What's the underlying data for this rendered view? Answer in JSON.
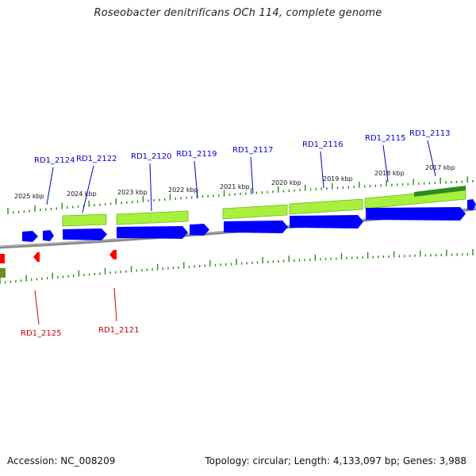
{
  "title": "Roseobacter denitrificans OCh 114, complete genome",
  "footer": {
    "accession": "Accession: NC_008209",
    "summary": "Topology: circular; Length: 4,133,097 bp; Genes: 3,988"
  },
  "colors": {
    "forward_cds": "#0000ff",
    "reverse_cds": "#ff0000",
    "gene_bar": "#a8f03c",
    "gene_bar_dark": "#2e8b22",
    "backbone": "#808080",
    "tick": "#2a8a1a",
    "label_forward": "#0000cc",
    "label_reverse": "#cc0000"
  },
  "scale_labels": [
    "2025 kbp",
    "2024 kbp",
    "2023 kbp",
    "2022 kbp",
    "2021 kbp",
    "2020 kbp",
    "2019 kbp",
    "2018 kbp",
    "2017 kbp"
  ],
  "gene_labels_forward": [
    "RD1_2124",
    "RD1_2122",
    "RD1_2120",
    "RD1_2119",
    "RD1_2117",
    "RD1_2116",
    "RD1_2115",
    "RD1_2113"
  ],
  "gene_labels_reverse": [
    "RD1_2125",
    "RD1_2121"
  ]
}
